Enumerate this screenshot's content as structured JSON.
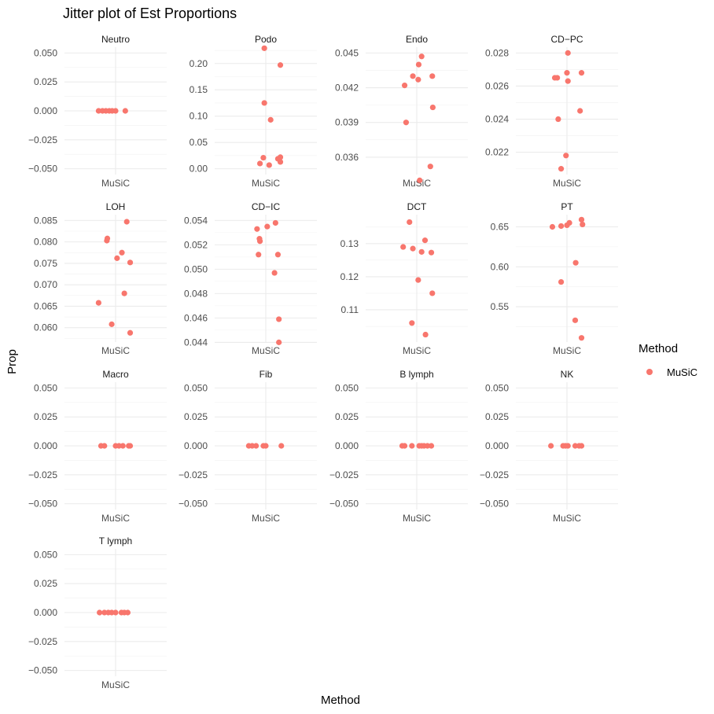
{
  "chart_data": {
    "type": "scatter",
    "title": "Jitter plot of Est Proportions",
    "xlabel": "Method",
    "ylabel": "Prop",
    "legend": {
      "title": "Method",
      "entries": [
        {
          "name": "MuSiC",
          "color": "#F8766D"
        }
      ],
      "position": "right"
    },
    "x_category": "MuSiC",
    "grid": true,
    "panels": [
      {
        "name": "Neutro",
        "ylim": [
          -0.05,
          0.05
        ],
        "yticks": [
          "0.050",
          "0.025",
          "0.000",
          "-0.025",
          "-0.050"
        ],
        "points": [
          {
            "jx": -0.35,
            "y": 0
          },
          {
            "jx": -0.27,
            "y": 0
          },
          {
            "jx": -0.2,
            "y": 0
          },
          {
            "jx": -0.13,
            "y": 0
          },
          {
            "jx": -0.07,
            "y": 0
          },
          {
            "jx": 0.0,
            "y": 0
          },
          {
            "jx": 0.2,
            "y": 0
          }
        ]
      },
      {
        "name": "Podo",
        "ylim": [
          0.0,
          0.22
        ],
        "yticks": [
          "0.20",
          "0.15",
          "0.10",
          "0.05",
          "0.00"
        ],
        "points": [
          {
            "jx": -0.03,
            "y": 0.229
          },
          {
            "jx": 0.3,
            "y": 0.197
          },
          {
            "jx": -0.03,
            "y": 0.125
          },
          {
            "jx": 0.1,
            "y": 0.093
          },
          {
            "jx": -0.05,
            "y": 0.021
          },
          {
            "jx": 0.25,
            "y": 0.019
          },
          {
            "jx": 0.3,
            "y": 0.022
          },
          {
            "jx": -0.12,
            "y": 0.01
          },
          {
            "jx": 0.07,
            "y": 0.007
          },
          {
            "jx": 0.3,
            "y": 0.013
          }
        ]
      },
      {
        "name": "Endo",
        "ylim": [
          0.035,
          0.045
        ],
        "yticks": [
          "0.045",
          "0.042",
          "0.039",
          "0.036"
        ],
        "points": [
          {
            "jx": 0.1,
            "y": 0.0447
          },
          {
            "jx": 0.04,
            "y": 0.044
          },
          {
            "jx": 0.32,
            "y": 0.043
          },
          {
            "jx": -0.08,
            "y": 0.043
          },
          {
            "jx": 0.03,
            "y": 0.0427
          },
          {
            "jx": -0.25,
            "y": 0.0422
          },
          {
            "jx": 0.33,
            "y": 0.0403
          },
          {
            "jx": -0.22,
            "y": 0.039
          },
          {
            "jx": 0.28,
            "y": 0.0352
          },
          {
            "jx": 0.06,
            "y": 0.034
          }
        ]
      },
      {
        "name": "CD−PC",
        "ylim": [
          0.021,
          0.028
        ],
        "yticks": [
          "0.028",
          "0.026",
          "0.024",
          "0.022"
        ],
        "points": [
          {
            "jx": 0.02,
            "y": 0.028
          },
          {
            "jx": 0.0,
            "y": 0.0268
          },
          {
            "jx": 0.3,
            "y": 0.0268
          },
          {
            "jx": -0.2,
            "y": 0.0265
          },
          {
            "jx": -0.25,
            "y": 0.0265
          },
          {
            "jx": 0.02,
            "y": 0.0263
          },
          {
            "jx": 0.27,
            "y": 0.0245
          },
          {
            "jx": -0.18,
            "y": 0.024
          },
          {
            "jx": -0.02,
            "y": 0.0218
          },
          {
            "jx": -0.12,
            "y": 0.021
          }
        ]
      },
      {
        "name": "LOH",
        "ylim": [
          0.058,
          0.085
        ],
        "yticks": [
          "0.085",
          "0.080",
          "0.075",
          "0.070",
          "0.065",
          "0.060"
        ],
        "points": [
          {
            "jx": 0.23,
            "y": 0.0847
          },
          {
            "jx": -0.17,
            "y": 0.0808
          },
          {
            "jx": -0.18,
            "y": 0.0803
          },
          {
            "jx": 0.13,
            "y": 0.0775
          },
          {
            "jx": 0.03,
            "y": 0.0762
          },
          {
            "jx": 0.3,
            "y": 0.0752
          },
          {
            "jx": 0.18,
            "y": 0.068
          },
          {
            "jx": -0.35,
            "y": 0.0658
          },
          {
            "jx": -0.08,
            "y": 0.0608
          },
          {
            "jx": 0.3,
            "y": 0.0588
          }
        ]
      },
      {
        "name": "CD−IC",
        "ylim": [
          0.0445,
          0.054
        ],
        "yticks": [
          "0.054",
          "0.052",
          "0.050",
          "0.048",
          "0.046",
          "0.044"
        ],
        "points": [
          {
            "jx": 0.2,
            "y": 0.0538
          },
          {
            "jx": 0.03,
            "y": 0.0535
          },
          {
            "jx": -0.18,
            "y": 0.0533
          },
          {
            "jx": -0.13,
            "y": 0.0525
          },
          {
            "jx": -0.12,
            "y": 0.0523
          },
          {
            "jx": 0.25,
            "y": 0.0512
          },
          {
            "jx": -0.15,
            "y": 0.0512
          },
          {
            "jx": 0.18,
            "y": 0.0497
          },
          {
            "jx": 0.27,
            "y": 0.0459
          },
          {
            "jx": 0.27,
            "y": 0.044
          }
        ]
      },
      {
        "name": "DCT",
        "ylim": [
          0.102,
          0.137
        ],
        "yticks": [
          "0.13",
          "0.12",
          "0.11"
        ],
        "points": [
          {
            "jx": -0.15,
            "y": 0.1365
          },
          {
            "jx": 0.17,
            "y": 0.131
          },
          {
            "jx": -0.28,
            "y": 0.129
          },
          {
            "jx": -0.08,
            "y": 0.1285
          },
          {
            "jx": 0.1,
            "y": 0.1275
          },
          {
            "jx": 0.3,
            "y": 0.1273
          },
          {
            "jx": 0.03,
            "y": 0.119
          },
          {
            "jx": 0.32,
            "y": 0.115
          },
          {
            "jx": -0.1,
            "y": 0.106
          },
          {
            "jx": 0.18,
            "y": 0.1025
          }
        ]
      },
      {
        "name": "PT",
        "ylim": [
          0.513,
          0.658
        ],
        "yticks": [
          "0.65",
          "0.60",
          "0.55"
        ],
        "points": [
          {
            "jx": 0.3,
            "y": 0.659
          },
          {
            "jx": 0.05,
            "y": 0.655
          },
          {
            "jx": 0.32,
            "y": 0.653
          },
          {
            "jx": 0.0,
            "y": 0.652
          },
          {
            "jx": -0.12,
            "y": 0.651
          },
          {
            "jx": -0.3,
            "y": 0.65
          },
          {
            "jx": 0.18,
            "y": 0.605
          },
          {
            "jx": -0.12,
            "y": 0.581
          },
          {
            "jx": 0.17,
            "y": 0.533
          },
          {
            "jx": 0.3,
            "y": 0.511
          }
        ]
      },
      {
        "name": "Macro",
        "ylim": [
          -0.05,
          0.05
        ],
        "yticks": [
          "0.050",
          "0.025",
          "0.000",
          "-0.025",
          "-0.050"
        ],
        "points": [
          {
            "jx": -0.3,
            "y": 0
          },
          {
            "jx": -0.23,
            "y": 0
          },
          {
            "jx": 0.0,
            "y": 0
          },
          {
            "jx": 0.07,
            "y": 0
          },
          {
            "jx": 0.15,
            "y": 0
          },
          {
            "jx": 0.27,
            "y": 0
          },
          {
            "jx": 0.3,
            "y": 0
          }
        ]
      },
      {
        "name": "Fib",
        "ylim": [
          -0.05,
          0.05
        ],
        "yticks": [
          "0.050",
          "0.025",
          "0.000",
          "-0.025",
          "-0.050"
        ],
        "points": [
          {
            "jx": -0.35,
            "y": 0
          },
          {
            "jx": -0.28,
            "y": 0
          },
          {
            "jx": -0.2,
            "y": 0
          },
          {
            "jx": -0.05,
            "y": 0
          },
          {
            "jx": 0.0,
            "y": 0
          },
          {
            "jx": 0.32,
            "y": 0
          }
        ]
      },
      {
        "name": "B lymph",
        "ylim": [
          -0.05,
          0.05
        ],
        "yticks": [
          "0.050",
          "0.025",
          "0.000",
          "-0.025",
          "-0.050"
        ],
        "points": [
          {
            "jx": -0.3,
            "y": 0
          },
          {
            "jx": -0.25,
            "y": 0
          },
          {
            "jx": -0.1,
            "y": 0
          },
          {
            "jx": 0.05,
            "y": 0
          },
          {
            "jx": 0.1,
            "y": 0
          },
          {
            "jx": 0.15,
            "y": 0
          },
          {
            "jx": 0.22,
            "y": 0
          },
          {
            "jx": 0.3,
            "y": 0
          }
        ]
      },
      {
        "name": "NK",
        "ylim": [
          -0.05,
          0.05
        ],
        "yticks": [
          "0.050",
          "0.025",
          "0.000",
          "-0.025",
          "-0.050"
        ],
        "points": [
          {
            "jx": -0.33,
            "y": 0
          },
          {
            "jx": -0.08,
            "y": 0
          },
          {
            "jx": -0.03,
            "y": 0
          },
          {
            "jx": 0.02,
            "y": 0
          },
          {
            "jx": 0.17,
            "y": 0
          },
          {
            "jx": 0.25,
            "y": 0
          },
          {
            "jx": 0.3,
            "y": 0
          }
        ]
      },
      {
        "name": "T lymph",
        "ylim": [
          -0.05,
          0.05
        ],
        "yticks": [
          "0.050",
          "0.025",
          "0.000",
          "-0.025",
          "-0.050"
        ],
        "points": [
          {
            "jx": -0.33,
            "y": 0
          },
          {
            "jx": -0.23,
            "y": 0
          },
          {
            "jx": -0.15,
            "y": 0
          },
          {
            "jx": -0.08,
            "y": 0
          },
          {
            "jx": 0.0,
            "y": 0
          },
          {
            "jx": 0.12,
            "y": 0
          },
          {
            "jx": 0.18,
            "y": 0
          },
          {
            "jx": 0.25,
            "y": 0
          }
        ]
      }
    ]
  }
}
